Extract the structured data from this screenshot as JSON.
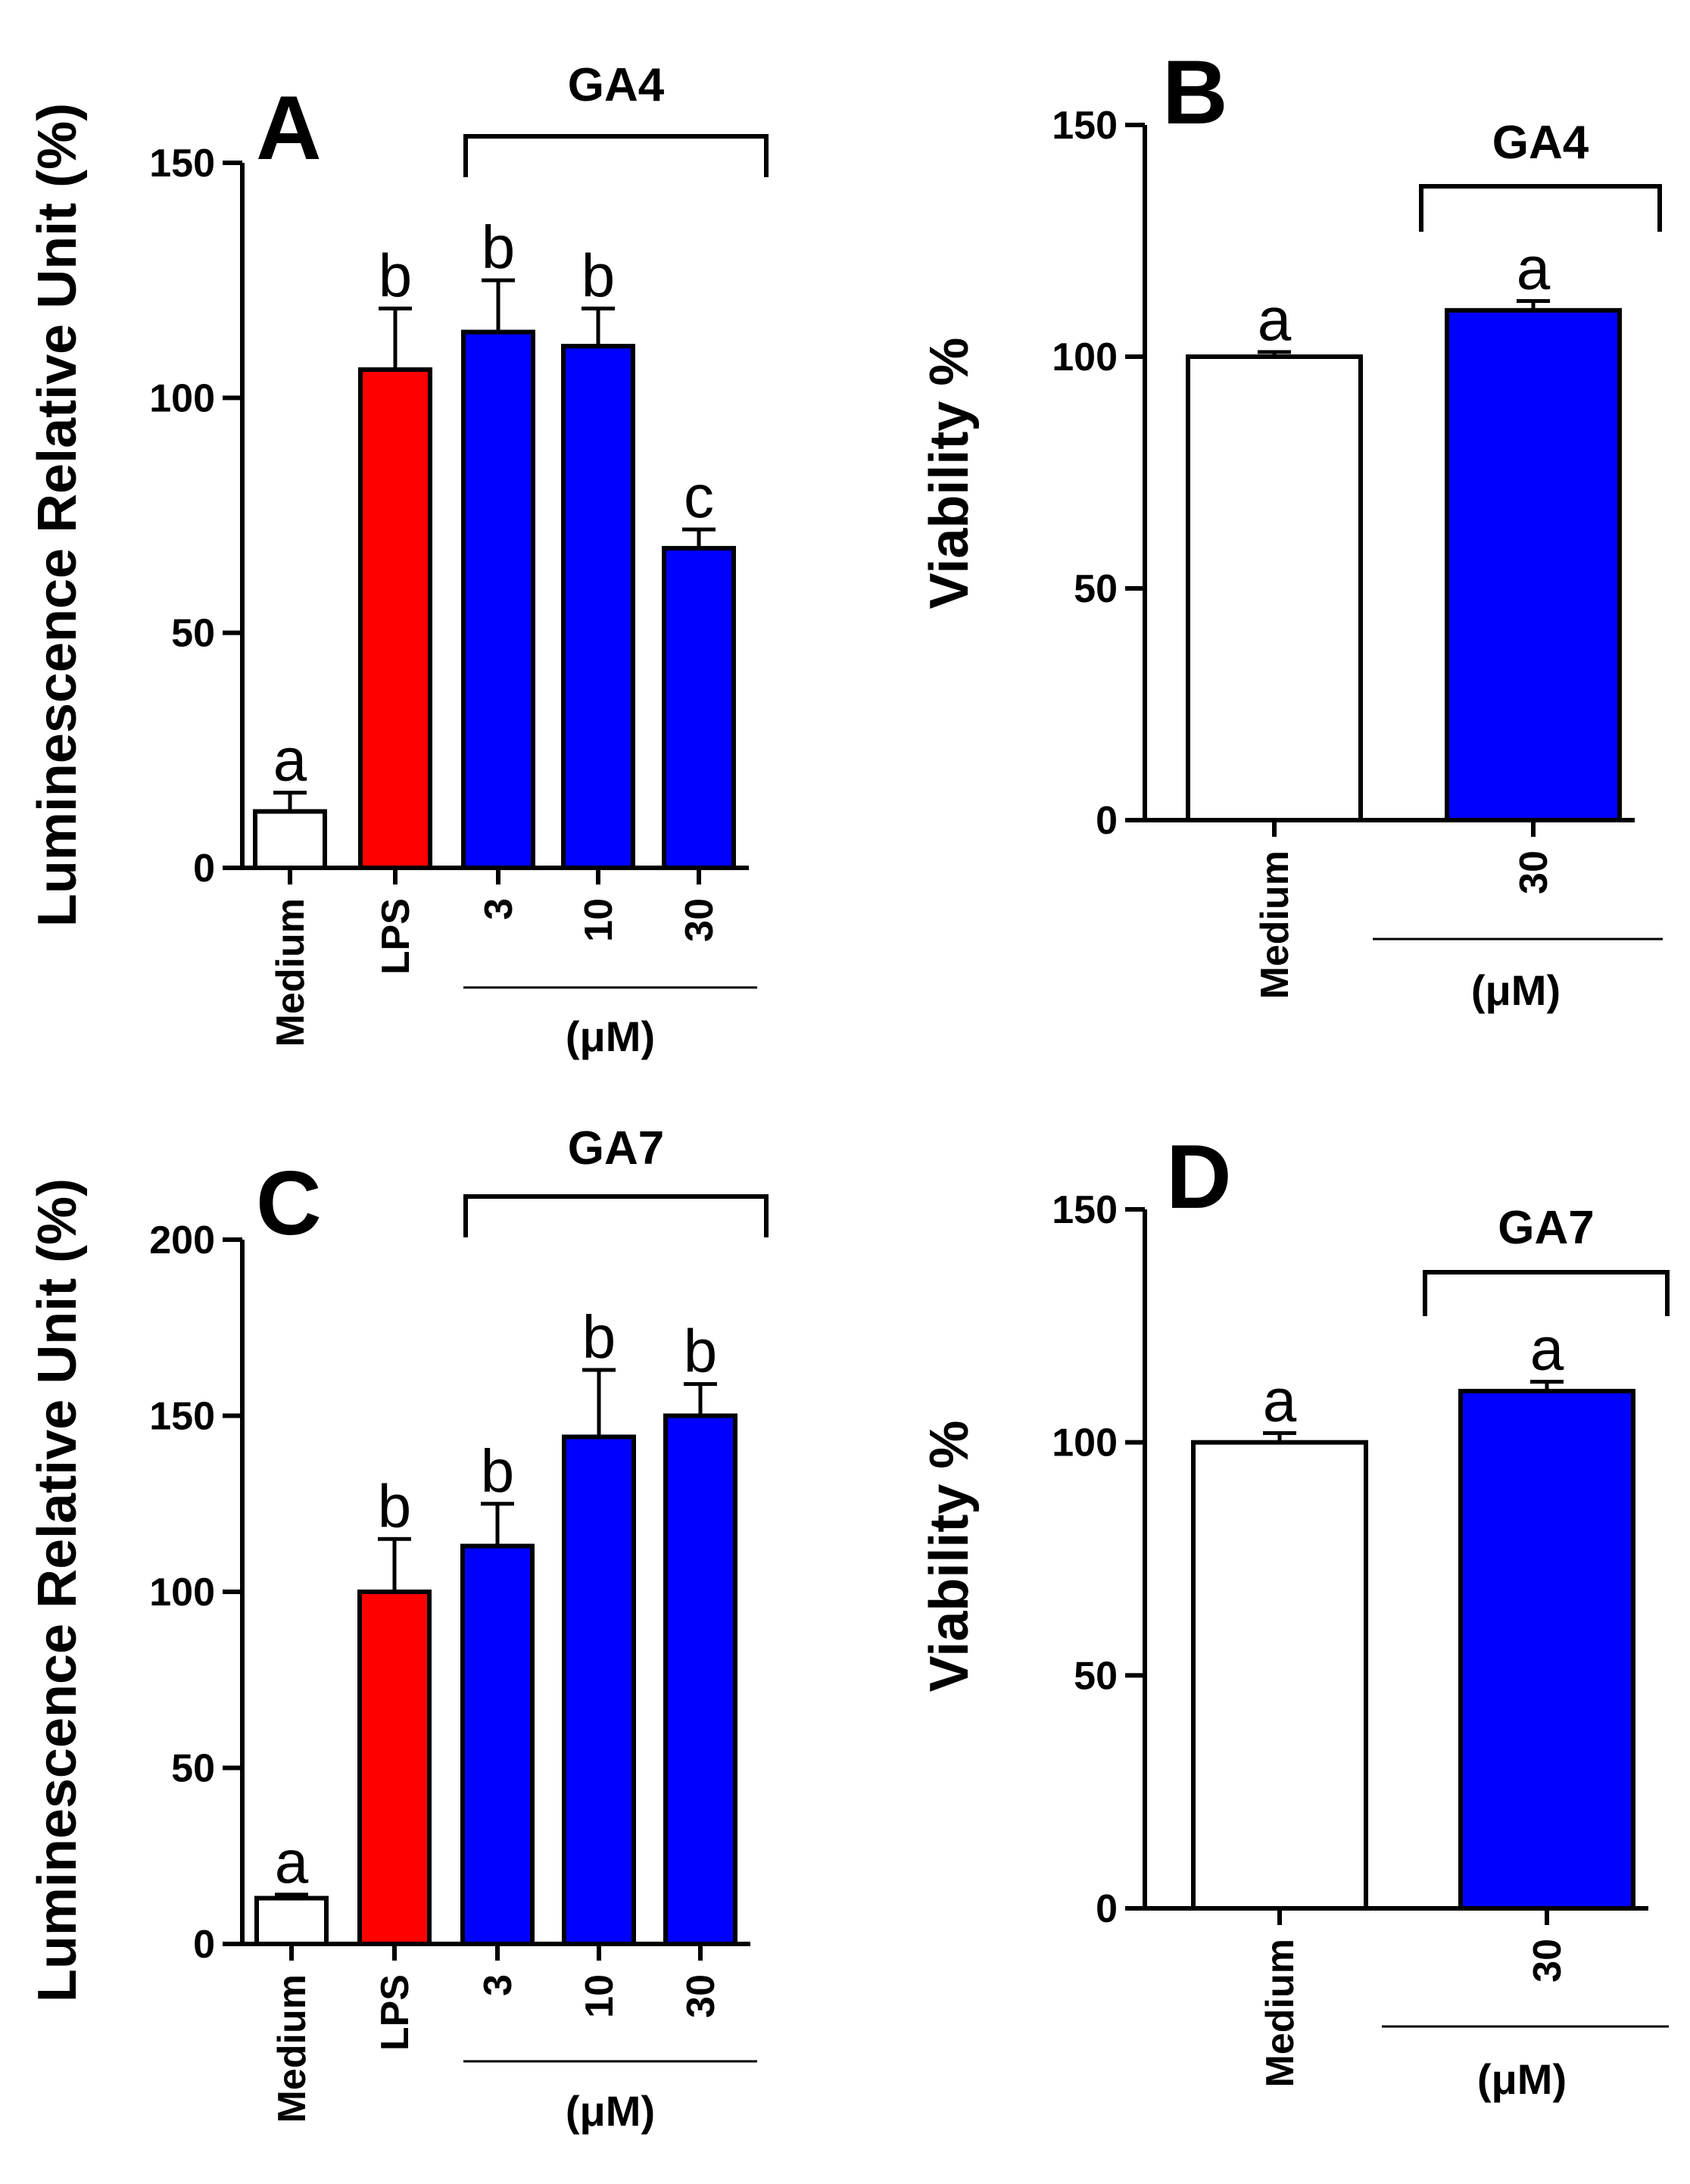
{
  "chart_data": [
    {
      "panel": "A",
      "type": "bar",
      "categories": [
        "Medium",
        "LPS",
        "3",
        "10",
        "30"
      ],
      "values": [
        12,
        106,
        114,
        111,
        68
      ],
      "errors": [
        4,
        13,
        11,
        8,
        4
      ],
      "significance": [
        "a",
        "b",
        "b",
        "b",
        "c"
      ],
      "colors": [
        "#ffffff",
        "#ff0000",
        "#0000ff",
        "#0000ff",
        "#0000ff"
      ],
      "ylabel": "Luminescence Relative Unit (%)",
      "ylim": [
        0,
        150
      ],
      "yticks": [
        "0",
        "50",
        "100",
        "150"
      ],
      "group_label": "GA4",
      "unit_label": "(μM)"
    },
    {
      "panel": "B",
      "type": "bar",
      "categories": [
        "Medium",
        "30"
      ],
      "values": [
        100,
        110
      ],
      "errors": [
        1,
        2
      ],
      "significance": [
        "a",
        "a"
      ],
      "colors": [
        "#ffffff",
        "#0000ff"
      ],
      "ylabel": "Viability %",
      "ylim": [
        0,
        150
      ],
      "yticks": [
        "0",
        "50",
        "100",
        "150"
      ],
      "group_label": "GA4",
      "unit_label": "(μM)"
    },
    {
      "panel": "C",
      "type": "bar",
      "categories": [
        "Medium",
        "LPS",
        "3",
        "10",
        "30"
      ],
      "values": [
        13,
        100,
        113,
        144,
        150
      ],
      "errors": [
        1,
        15,
        12,
        19,
        9
      ],
      "significance": [
        "a",
        "b",
        "b",
        "b",
        "b"
      ],
      "colors": [
        "#ffffff",
        "#ff0000",
        "#0000ff",
        "#0000ff",
        "#0000ff"
      ],
      "ylabel": "Luminescence Relative Unit (%)",
      "ylim": [
        0,
        200
      ],
      "yticks": [
        "0",
        "50",
        "100",
        "150",
        "200"
      ],
      "group_label": "GA7",
      "unit_label": "(μM)"
    },
    {
      "panel": "D",
      "type": "bar",
      "categories": [
        "Medium",
        "30"
      ],
      "values": [
        100,
        111
      ],
      "errors": [
        2,
        2
      ],
      "significance": [
        "a",
        "a"
      ],
      "colors": [
        "#ffffff",
        "#0000ff"
      ],
      "ylabel": "Viability %",
      "ylim": [
        0,
        150
      ],
      "yticks": [
        "0",
        "50",
        "100",
        "150"
      ],
      "group_label": "GA7",
      "unit_label": "(μM)"
    }
  ]
}
